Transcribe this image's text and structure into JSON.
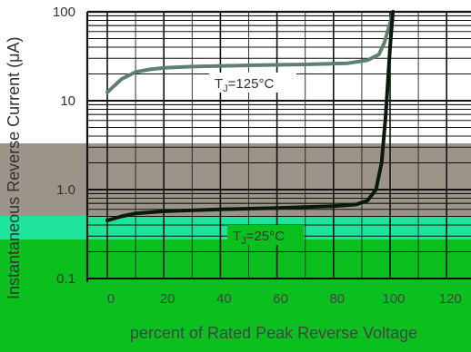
{
  "chart_data": {
    "type": "line",
    "ylabel": "Instantaneous Reverse Current (μA)",
    "xlabel": "percent of Rated Peak Reverse Voltage",
    "yscale": "log",
    "ylim": [
      0.1,
      100
    ],
    "xlim": [
      0,
      120
    ],
    "yticks": [
      "100",
      "10",
      "1.0",
      "0.1"
    ],
    "xticks": [
      "0",
      "20",
      "40",
      "60",
      "80",
      "100",
      "120"
    ],
    "series": [
      {
        "name": "TJ=125°C",
        "color": "#5f8070",
        "x": [
          0,
          5,
          10,
          15,
          20,
          30,
          50,
          70,
          85,
          92,
          96,
          98,
          100,
          101
        ],
        "y": [
          12.4,
          17.5,
          21,
          22.5,
          23.4,
          24.2,
          25,
          25.6,
          26.4,
          28.5,
          33,
          45,
          75,
          100
        ]
      },
      {
        "name": "TJ=25°C",
        "color": "#0a1a0a",
        "x": [
          0,
          5,
          10,
          20,
          40,
          60,
          80,
          88,
          92,
          95,
          97,
          98.5,
          100,
          101
        ],
        "y": [
          0.45,
          0.5,
          0.54,
          0.57,
          0.6,
          0.62,
          0.65,
          0.68,
          0.75,
          1.0,
          2.0,
          7,
          40,
          100
        ]
      }
    ],
    "annotations": [
      {
        "label_main": "T",
        "label_sub": "J",
        "label_rest": "=125°C"
      },
      {
        "label_main": "T",
        "label_sub": "J",
        "label_rest": "=25°C"
      }
    ],
    "grid": true
  }
}
